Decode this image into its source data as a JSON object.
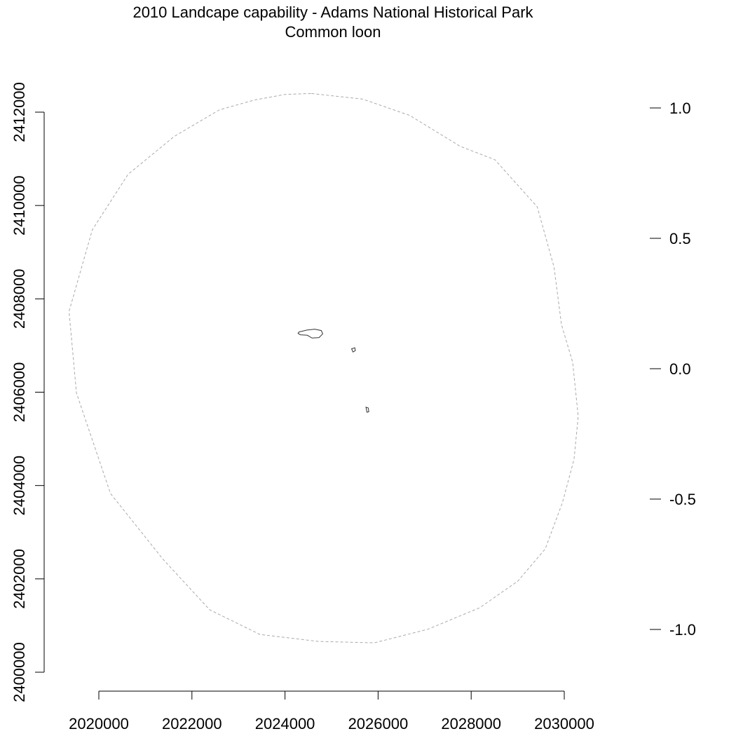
{
  "title": "2010 Landcape capability - Adams National Historical Park",
  "subtitle": "Common loon",
  "map": {
    "x_axis": {
      "ticks": [
        2020000,
        2022000,
        2024000,
        2026000,
        2028000,
        2030000
      ],
      "tick_labels": [
        "2020000",
        "2022000",
        "2024000",
        "2026000",
        "2028000",
        "2030000"
      ],
      "range": [
        2020000,
        2030000
      ]
    },
    "y_axis": {
      "ticks": [
        2400000,
        2402000,
        2404000,
        2406000,
        2408000,
        2410000,
        2412000
      ],
      "tick_labels": [
        "2400000",
        "2402000",
        "2404000",
        "2406000",
        "2408000",
        "2410000",
        "2412000"
      ],
      "range": [
        2400000,
        2412000
      ]
    },
    "legend_scale": {
      "ticks": [
        1.0,
        0.5,
        0.0,
        -0.5,
        -1.0
      ],
      "tick_labels": [
        "1.0",
        "0.5",
        "0.0",
        "-0.5",
        "-1.0"
      ],
      "range": [
        -1.0,
        1.0
      ]
    },
    "boundary": {
      "style": "dashed",
      "color": "#aaaaaa",
      "coords": [
        [
          2024570,
          2412400
        ],
        [
          2025670,
          2412280
        ],
        [
          2026680,
          2411930
        ],
        [
          2027760,
          2411270
        ],
        [
          2028510,
          2410980
        ],
        [
          2029420,
          2409970
        ],
        [
          2029780,
          2408680
        ],
        [
          2029940,
          2407450
        ],
        [
          2030180,
          2406640
        ],
        [
          2030300,
          2405480
        ],
        [
          2030210,
          2404560
        ],
        [
          2029960,
          2403630
        ],
        [
          2029590,
          2402640
        ],
        [
          2029000,
          2401950
        ],
        [
          2028180,
          2401380
        ],
        [
          2027070,
          2400920
        ],
        [
          2025920,
          2400630
        ],
        [
          2024720,
          2400660
        ],
        [
          2023460,
          2400810
        ],
        [
          2022380,
          2401340
        ],
        [
          2021380,
          2402420
        ],
        [
          2020250,
          2403830
        ],
        [
          2019520,
          2405980
        ],
        [
          2019360,
          2407730
        ],
        [
          2019860,
          2409480
        ],
        [
          2020630,
          2410670
        ],
        [
          2021620,
          2411480
        ],
        [
          2022590,
          2412050
        ],
        [
          2023340,
          2412260
        ],
        [
          2024000,
          2412380
        ],
        [
          2024570,
          2412400
        ]
      ]
    },
    "features": [
      {
        "name": "pond-1",
        "coords": [
          [
            2024300,
            2407290
          ],
          [
            2024470,
            2407330
          ],
          [
            2024640,
            2407350
          ],
          [
            2024780,
            2407320
          ],
          [
            2024810,
            2407250
          ],
          [
            2024730,
            2407170
          ],
          [
            2024580,
            2407160
          ],
          [
            2024480,
            2407220
          ],
          [
            2024330,
            2407230
          ],
          [
            2024280,
            2407260
          ],
          [
            2024300,
            2407290
          ]
        ]
      },
      {
        "name": "pond-2",
        "coords": [
          [
            2025430,
            2406930
          ],
          [
            2025500,
            2406950
          ],
          [
            2025510,
            2406890
          ],
          [
            2025460,
            2406860
          ],
          [
            2025430,
            2406930
          ]
        ]
      },
      {
        "name": "pond-3",
        "coords": [
          [
            2025740,
            2405680
          ],
          [
            2025790,
            2405660
          ],
          [
            2025800,
            2405580
          ],
          [
            2025760,
            2405570
          ],
          [
            2025740,
            2405680
          ]
        ]
      }
    ]
  }
}
